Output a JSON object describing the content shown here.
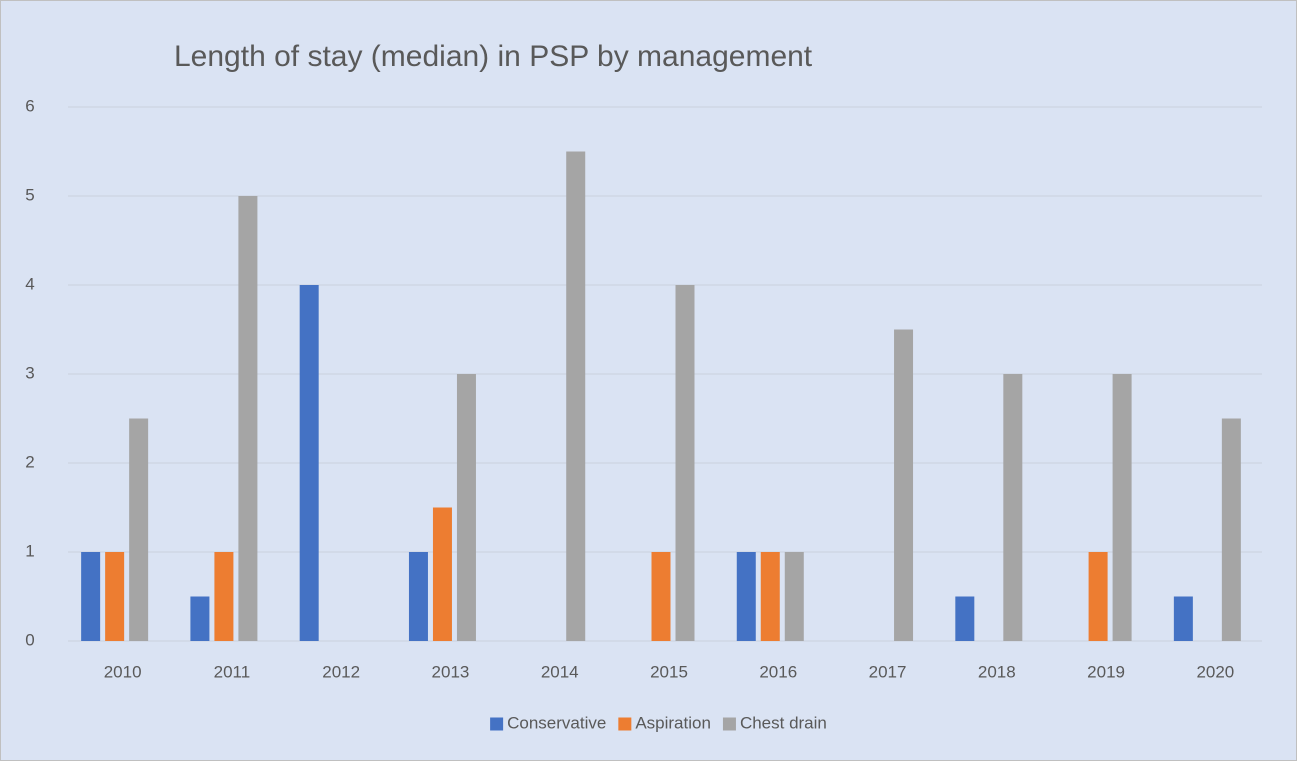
{
  "chart_data": {
    "type": "bar",
    "title": "Length of stay (median) in PSP by management",
    "categories": [
      "2010",
      "2011",
      "2012",
      "2013",
      "2014",
      "2015",
      "2016",
      "2017",
      "2018",
      "2019",
      "2020"
    ],
    "series": [
      {
        "name": "Conservative",
        "color": "#4472c4",
        "values": [
          1,
          0.5,
          4,
          1,
          0,
          0,
          1,
          0,
          0.5,
          0,
          0.5
        ]
      },
      {
        "name": "Aspiration",
        "color": "#ed7d31",
        "values": [
          1,
          1,
          0,
          1.5,
          0,
          1,
          1,
          0,
          0,
          1,
          0
        ]
      },
      {
        "name": "Chest drain",
        "color": "#a5a5a5",
        "values": [
          2.5,
          5,
          0,
          3,
          5.5,
          4,
          1,
          3.5,
          3,
          3,
          2.5
        ]
      }
    ],
    "ylim": [
      0,
      6
    ],
    "yticks": [
      0,
      1,
      2,
      3,
      4,
      5,
      6
    ],
    "grid": true,
    "legend": "bottom"
  }
}
